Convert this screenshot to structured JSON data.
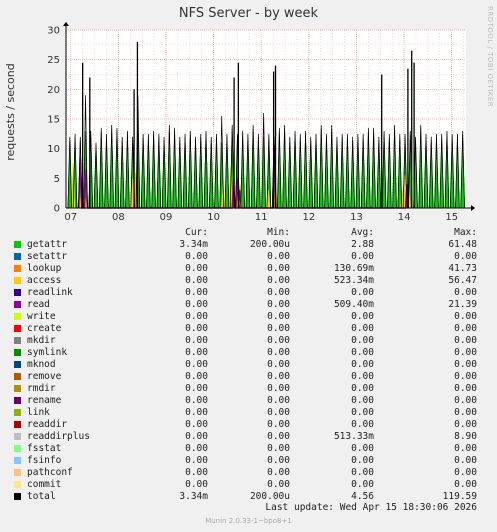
{
  "title": "NFS Server - by week",
  "vendor": "RRDTOOL / TOBI OETIKER",
  "footer": {
    "last_update": "Last update: Wed Apr 15 18:30:06 2026",
    "version": "Munin 2.0.33-1~bpo8+1"
  },
  "legend": {
    "headers": {
      "cur": "Cur:",
      "min": "Min:",
      "avg": "Avg:",
      "max": "Max:"
    },
    "rows": [
      {
        "name": "getattr",
        "color": "#00cc00",
        "cur": "3.34m",
        "min": "200.00u",
        "avg": "2.88",
        "max": "61.48"
      },
      {
        "name": "setattr",
        "color": "#0066b3",
        "cur": "0.00",
        "min": "0.00",
        "avg": "0.00",
        "max": "0.00"
      },
      {
        "name": "lookup",
        "color": "#ff8000",
        "cur": "0.00",
        "min": "0.00",
        "avg": "130.69m",
        "max": "41.73"
      },
      {
        "name": "access",
        "color": "#ffcc00",
        "cur": "0.00",
        "min": "0.00",
        "avg": "523.34m",
        "max": "56.47"
      },
      {
        "name": "readlink",
        "color": "#330099",
        "cur": "0.00",
        "min": "0.00",
        "avg": "0.00",
        "max": "0.00"
      },
      {
        "name": "read",
        "color": "#990099",
        "cur": "0.00",
        "min": "0.00",
        "avg": "509.40m",
        "max": "21.39"
      },
      {
        "name": "write",
        "color": "#ccff00",
        "cur": "0.00",
        "min": "0.00",
        "avg": "0.00",
        "max": "0.00"
      },
      {
        "name": "create",
        "color": "#ff0000",
        "cur": "0.00",
        "min": "0.00",
        "avg": "0.00",
        "max": "0.00"
      },
      {
        "name": "mkdir",
        "color": "#808080",
        "cur": "0.00",
        "min": "0.00",
        "avg": "0.00",
        "max": "0.00"
      },
      {
        "name": "symlink",
        "color": "#008f00",
        "cur": "0.00",
        "min": "0.00",
        "avg": "0.00",
        "max": "0.00"
      },
      {
        "name": "mknod",
        "color": "#00487d",
        "cur": "0.00",
        "min": "0.00",
        "avg": "0.00",
        "max": "0.00"
      },
      {
        "name": "remove",
        "color": "#b35a00",
        "cur": "0.00",
        "min": "0.00",
        "avg": "0.00",
        "max": "0.00"
      },
      {
        "name": "rmdir",
        "color": "#b38f00",
        "cur": "0.00",
        "min": "0.00",
        "avg": "0.00",
        "max": "0.00"
      },
      {
        "name": "rename",
        "color": "#6b006b",
        "cur": "0.00",
        "min": "0.00",
        "avg": "0.00",
        "max": "0.00"
      },
      {
        "name": "link",
        "color": "#8fb300",
        "cur": "0.00",
        "min": "0.00",
        "avg": "0.00",
        "max": "0.00"
      },
      {
        "name": "readdir",
        "color": "#b30000",
        "cur": "0.00",
        "min": "0.00",
        "avg": "0.00",
        "max": "0.00"
      },
      {
        "name": "readdirplus",
        "color": "#bebebe",
        "cur": "0.00",
        "min": "0.00",
        "avg": "513.33m",
        "max": "8.90"
      },
      {
        "name": "fsstat",
        "color": "#80ff80",
        "cur": "0.00",
        "min": "0.00",
        "avg": "0.00",
        "max": "0.00"
      },
      {
        "name": "fsinfo",
        "color": "#80c9ff",
        "cur": "0.00",
        "min": "0.00",
        "avg": "0.00",
        "max": "0.00"
      },
      {
        "name": "pathconf",
        "color": "#ffc080",
        "cur": "0.00",
        "min": "0.00",
        "avg": "0.00",
        "max": "0.00"
      },
      {
        "name": "commit",
        "color": "#ffe680",
        "cur": "0.00",
        "min": "0.00",
        "avg": "0.00",
        "max": "0.00"
      },
      {
        "name": "total",
        "color": "#000000",
        "cur": "3.34m",
        "min": "200.00u",
        "avg": "4.56",
        "max": "119.59"
      }
    ]
  },
  "chart_data": {
    "type": "area",
    "title": "NFS Server - by week",
    "ylabel": "requests / second",
    "xlabel": "",
    "ylim": [
      0,
      30
    ],
    "yticks": [
      0,
      5,
      10,
      15,
      20,
      25,
      30
    ],
    "xlim": [
      6.9,
      15.3
    ],
    "xticks": [
      {
        "v": 7,
        "label": "07"
      },
      {
        "v": 8,
        "label": "08"
      },
      {
        "v": 9,
        "label": "09"
      },
      {
        "v": 10,
        "label": "10"
      },
      {
        "v": 11,
        "label": "11"
      },
      {
        "v": 12,
        "label": "12"
      },
      {
        "v": 13,
        "label": "13"
      },
      {
        "v": 14,
        "label": "14"
      },
      {
        "v": 15,
        "label": "15"
      }
    ],
    "grid": true,
    "legend_placement": "bottom",
    "colors": {
      "getattr": "#00cc00",
      "access": "#ffcc00",
      "read": "#990099",
      "readdirplus": "#bebebe",
      "total": "#000000",
      "grid_major": "#ff9999",
      "grid_minor": "#e6b4b4",
      "plot_bg": "#ffffff"
    },
    "series": [
      {
        "name": "total",
        "x": [
          6.98,
          7.09,
          7.2,
          7.31,
          7.42,
          7.53,
          7.64,
          7.75,
          7.86,
          7.97,
          8.08,
          8.19,
          8.3,
          8.41,
          8.52,
          8.63,
          8.74,
          8.85,
          8.96,
          9.07,
          9.18,
          9.29,
          9.4,
          9.51,
          9.62,
          9.73,
          9.84,
          9.95,
          10.06,
          10.17,
          10.28,
          10.39,
          10.5,
          10.61,
          10.72,
          10.83,
          10.94,
          11.05,
          11.16,
          11.27,
          11.38,
          11.49,
          11.6,
          11.71,
          11.82,
          11.93,
          12.04,
          12.15,
          12.26,
          12.37,
          12.48,
          12.59,
          12.7,
          12.81,
          12.92,
          13.03,
          13.14,
          13.25,
          13.36,
          13.47,
          13.58,
          13.69,
          13.8,
          13.91,
          14.02,
          14.13,
          14.24,
          14.35,
          14.46,
          14.57,
          14.68,
          14.79,
          14.9,
          15.01,
          15.12,
          15.23
        ],
        "values": [
          12,
          12.5,
          12,
          19,
          13,
          11,
          13.5,
          12.5,
          14,
          13.5,
          12,
          13,
          12,
          19,
          12.5,
          12.5,
          13,
          12.5,
          12,
          14,
          13.5,
          12,
          12.5,
          13,
          12,
          12.5,
          13,
          12,
          12.5,
          15.5,
          12.5,
          14,
          12.5,
          13,
          12.5,
          14,
          12.5,
          16,
          12.5,
          12,
          13.5,
          14,
          12,
          13,
          12.5,
          13,
          12,
          12.5,
          14,
          12.5,
          14,
          12,
          12.5,
          12.5,
          12,
          12.5,
          12.5,
          13.5,
          13.5,
          12,
          13,
          12.5,
          14,
          12.5,
          12.5,
          13,
          12,
          14,
          12.5,
          12,
          12.5,
          12.5,
          13,
          12.5,
          12.5,
          13
        ],
        "peaks": [
          {
            "x": 7.25,
            "value": 24.5
          },
          {
            "x": 7.4,
            "value": 22
          },
          {
            "x": 8.4,
            "value": 28
          },
          {
            "x": 8.33,
            "value": 20
          },
          {
            "x": 10.43,
            "value": 22
          },
          {
            "x": 10.52,
            "value": 24.5
          },
          {
            "x": 11.3,
            "value": 24
          },
          {
            "x": 11.26,
            "value": 23
          },
          {
            "x": 13.53,
            "value": 22.5
          },
          {
            "x": 14.16,
            "value": 26.5
          },
          {
            "x": 14.08,
            "value": 23.5
          },
          {
            "x": 14.21,
            "value": 24.5
          }
        ]
      },
      {
        "name": "getattr",
        "x": [
          6.98,
          7.09,
          7.2,
          7.31,
          7.42,
          7.53,
          7.64,
          7.75,
          7.86,
          7.97,
          8.08,
          8.19,
          8.3,
          8.41,
          8.52,
          8.63,
          8.74,
          8.85,
          8.96,
          9.07,
          9.18,
          9.29,
          9.4,
          9.51,
          9.62,
          9.73,
          9.84,
          9.95,
          10.06,
          10.17,
          10.28,
          10.39,
          10.5,
          10.61,
          10.72,
          10.83,
          10.94,
          11.05,
          11.16,
          11.27,
          11.38,
          11.49,
          11.6,
          11.71,
          11.82,
          11.93,
          12.04,
          12.15,
          12.26,
          12.37,
          12.48,
          12.59,
          12.7,
          12.81,
          12.92,
          13.03,
          13.14,
          13.25,
          13.36,
          13.47,
          13.58,
          13.69,
          13.8,
          13.91,
          14.02,
          14.13,
          14.24,
          14.35,
          14.46,
          14.57,
          14.68,
          14.79,
          14.9,
          15.01,
          15.12,
          15.23
        ],
        "values": [
          11.5,
          12,
          11.5,
          13,
          12.5,
          10.5,
          13,
          12,
          13.5,
          13,
          11.5,
          12.5,
          11.5,
          14,
          12,
          12,
          12.5,
          12,
          11.5,
          13.5,
          13,
          11.5,
          12,
          12.5,
          11.5,
          12,
          12.5,
          11.5,
          12,
          11,
          12,
          13.5,
          12,
          12.5,
          12,
          13.5,
          12,
          12,
          12,
          11.5,
          13,
          13.5,
          11.5,
          12.5,
          12,
          12.5,
          11.5,
          12,
          13.5,
          12,
          13.5,
          11.5,
          12,
          12,
          11.5,
          12,
          12,
          13,
          13,
          11.5,
          12.5,
          12,
          13.5,
          12,
          12,
          12.5,
          11.5,
          13.5,
          12,
          11.5,
          12,
          12,
          12.5,
          12,
          12,
          12.5
        ]
      },
      {
        "name": "access",
        "x": [
          7.05,
          7.18,
          7.3,
          8.3,
          8.36,
          10.2,
          10.36,
          10.48,
          10.56,
          11.15,
          11.3,
          13.96,
          14.02,
          14.1
        ],
        "values": [
          7.5,
          3,
          2,
          5,
          6,
          4,
          7,
          3,
          4,
          3,
          4.5,
          3,
          5.5,
          3.5
        ]
      },
      {
        "name": "read",
        "x": [
          7.2,
          7.32,
          10.42,
          10.5,
          10.55,
          11.28,
          14.06
        ],
        "values": [
          8.5,
          6.5,
          4.5,
          5,
          3,
          10.5,
          4
        ]
      }
    ]
  }
}
